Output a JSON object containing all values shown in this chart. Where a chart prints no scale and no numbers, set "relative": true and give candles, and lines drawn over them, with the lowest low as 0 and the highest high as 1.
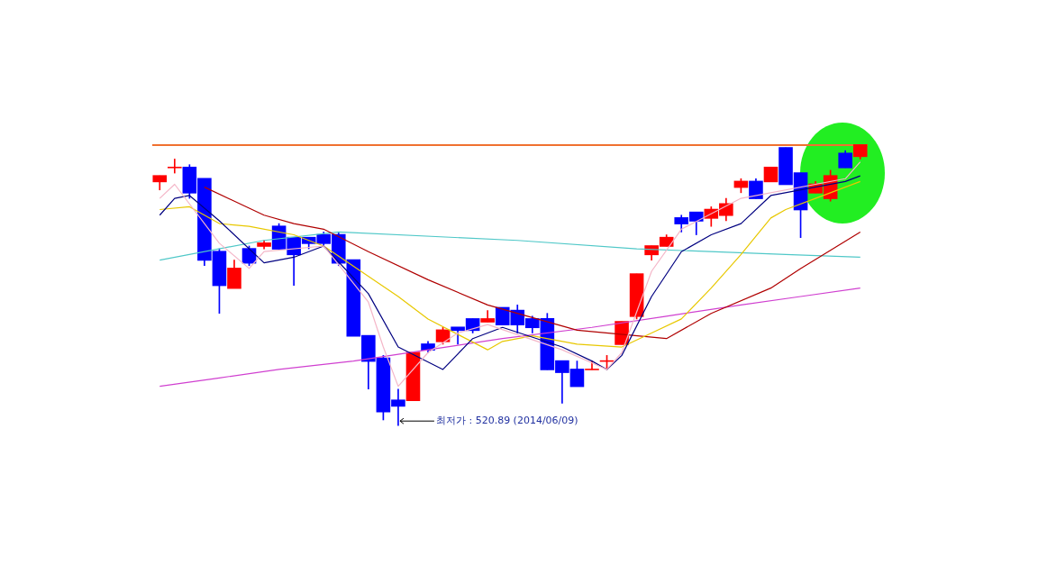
{
  "chart_data": {
    "type": "candlestick",
    "relative": true,
    "categories": [
      null,
      null,
      null,
      null,
      null,
      null,
      null,
      null,
      null,
      null,
      null,
      null,
      null,
      null,
      null,
      null,
      null,
      null,
      null,
      null,
      null,
      null,
      null,
      null,
      null,
      null,
      null,
      null,
      null,
      null,
      null,
      null,
      null,
      null,
      null,
      null,
      null,
      null,
      null,
      null,
      null,
      null,
      null,
      null,
      null,
      null,
      null,
      null
    ],
    "ohlc": [
      [
        0.87,
        0.89,
        0.84,
        0.89
      ],
      [
        0.92,
        0.95,
        0.9,
        0.92
      ],
      [
        0.92,
        0.93,
        0.81,
        0.83
      ],
      [
        0.88,
        0.88,
        0.57,
        0.59
      ],
      [
        0.62,
        0.63,
        0.4,
        0.5
      ],
      [
        0.49,
        0.59,
        0.49,
        0.56
      ],
      [
        0.63,
        0.64,
        0.57,
        0.58
      ],
      [
        0.64,
        0.66,
        0.63,
        0.65
      ],
      [
        0.71,
        0.72,
        0.63,
        0.63
      ],
      [
        0.67,
        0.67,
        0.5,
        0.61
      ],
      [
        0.67,
        0.67,
        0.63,
        0.65
      ],
      [
        0.68,
        0.69,
        0.64,
        0.65
      ],
      [
        0.68,
        0.69,
        0.57,
        0.58
      ],
      [
        0.59,
        0.59,
        0.32,
        0.32
      ],
      [
        0.32,
        0.32,
        0.13,
        0.23
      ],
      [
        0.24,
        0.25,
        0.02,
        0.05
      ],
      [
        0.09,
        0.13,
        0,
        0.07
      ],
      [
        0.09,
        0.26,
        0.09,
        0.26
      ],
      [
        0.29,
        0.3,
        0.26,
        0.27
      ],
      [
        0.3,
        0.35,
        0.29,
        0.34
      ],
      [
        0.35,
        0.35,
        0.29,
        0.34
      ],
      [
        0.38,
        0.38,
        0.33,
        0.34
      ],
      [
        0.37,
        0.41,
        0.37,
        0.38
      ],
      [
        0.42,
        0.42,
        0.36,
        0.36
      ],
      [
        0.41,
        0.43,
        0.33,
        0.36
      ],
      [
        0.38,
        0.39,
        0.33,
        0.35
      ],
      [
        0.38,
        0.4,
        0.2,
        0.2
      ],
      [
        0.23,
        0.23,
        0.08,
        0.19
      ],
      [
        0.2,
        0.23,
        0.14,
        0.14
      ],
      [
        0.2,
        0.23,
        0.2,
        0.2
      ],
      [
        0.23,
        0.25,
        0.2,
        0.23
      ],
      [
        0.29,
        0.37,
        0.29,
        0.37
      ],
      [
        0.39,
        0.54,
        0.38,
        0.54
      ],
      [
        0.61,
        0.64,
        0.59,
        0.64
      ],
      [
        0.64,
        0.68,
        0.64,
        0.67
      ],
      [
        0.74,
        0.75,
        0.69,
        0.72
      ],
      [
        0.76,
        0.76,
        0.68,
        0.73
      ],
      [
        0.74,
        0.78,
        0.71,
        0.77
      ],
      [
        0.75,
        0.81,
        0.73,
        0.79
      ],
      [
        0.85,
        0.88,
        0.83,
        0.87
      ],
      [
        0.87,
        0.88,
        0.81,
        0.81
      ],
      [
        0.87,
        0.92,
        0.87,
        0.92
      ],
      [
        0.99,
        0.99,
        0.86,
        0.86
      ],
      [
        0.9,
        0.9,
        0.67,
        0.77
      ],
      [
        0.83,
        0.87,
        0.83,
        0.86
      ],
      [
        0.81,
        0.91,
        0.8,
        0.89
      ],
      [
        0.97,
        0.98,
        0.92,
        0.92
      ],
      [
        0.96,
        1,
        0.95,
        1
      ]
    ],
    "colors": [
      "#ff0000",
      "#ff0000",
      "#0000ff",
      "#0000ff",
      "#0000ff",
      "#ff0000",
      "#0000ff",
      "#ff0000",
      "#0000ff",
      "#0000ff",
      "#0000ff",
      "#0000ff",
      "#0000ff",
      "#0000ff",
      "#0000ff",
      "#0000ff",
      "#0000ff",
      "#ff0000",
      "#0000ff",
      "#ff0000",
      "#0000ff",
      "#0000ff",
      "#ff0000",
      "#0000ff",
      "#0000ff",
      "#0000ff",
      "#0000ff",
      "#0000ff",
      "#0000ff",
      "#ff0000",
      "#ff0000",
      "#ff0000",
      "#ff0000",
      "#ff0000",
      "#ff0000",
      "#0000ff",
      "#0000ff",
      "#ff0000",
      "#ff0000",
      "#ff0000",
      "#0000ff",
      "#ff0000",
      "#0000ff",
      "#0000ff",
      "#ff0000",
      "#ff0000",
      "#0000ff",
      "#ff0000"
    ],
    "series": [
      {
        "type": "line",
        "color": "#f4b6c8",
        "values": [
          0.81,
          0.86,
          null,
          null,
          0.65,
          null,
          0.56,
          0.62,
          null,
          null,
          null,
          0.64,
          null,
          null,
          0.44,
          0.28,
          0.14,
          null,
          0.26,
          null,
          0.33,
          null,
          0.36,
          null,
          null,
          null,
          null,
          0.27,
          null,
          null,
          0.2,
          0.26,
          null,
          0.55,
          null,
          0.7,
          null,
          null,
          null,
          0.81,
          null,
          null,
          null,
          null,
          null,
          null,
          0.88,
          0.94
        ]
      },
      {
        "type": "line",
        "color": "#000080",
        "values": [
          0.75,
          0.81,
          0.82,
          null,
          0.73,
          null,
          null,
          0.58,
          null,
          0.6,
          null,
          0.64,
          null,
          null,
          0.47,
          null,
          0.28,
          null,
          null,
          0.2,
          null,
          0.31,
          null,
          0.35,
          null,
          null,
          null,
          0.28,
          null,
          0.23,
          0.2,
          0.25,
          null,
          0.46,
          null,
          0.62,
          null,
          0.68,
          null,
          0.72,
          null,
          0.82,
          null,
          null,
          null,
          null,
          0.87,
          0.89
        ]
      },
      {
        "type": "line",
        "color": "#e8c800",
        "values": [
          0.77,
          null,
          0.78,
          null,
          0.72,
          null,
          0.71,
          null,
          null,
          0.68,
          null,
          0.64,
          null,
          null,
          null,
          null,
          0.46,
          null,
          0.38,
          null,
          null,
          null,
          0.27,
          0.3,
          null,
          0.32,
          null,
          null,
          0.29,
          null,
          null,
          0.28,
          null,
          0.33,
          null,
          0.38,
          null,
          0.49,
          null,
          0.61,
          null,
          0.74,
          0.77,
          null,
          0.81,
          null,
          null,
          0.87
        ]
      },
      {
        "type": "line",
        "color": "#b00000",
        "values": [
          null,
          null,
          null,
          0.85,
          null,
          null,
          null,
          0.75,
          null,
          0.72,
          null,
          0.7,
          null,
          null,
          0.62,
          null,
          null,
          null,
          0.52,
          null,
          null,
          null,
          0.43,
          null,
          null,
          null,
          null,
          null,
          0.34,
          null,
          null,
          null,
          null,
          null,
          0.31,
          null,
          null,
          0.4,
          null,
          null,
          null,
          0.49,
          null,
          0.56,
          null,
          null,
          null,
          0.69
        ]
      },
      {
        "type": "line",
        "color": "#50c8c8",
        "values": [
          0.59,
          null,
          null,
          null,
          null,
          null,
          null,
          0.66,
          null,
          null,
          null,
          null,
          0.69,
          null,
          null,
          null,
          null,
          null,
          null,
          null,
          null,
          null,
          null,
          null,
          0.66,
          null,
          null,
          null,
          null,
          null,
          null,
          null,
          0.63,
          null,
          null,
          null,
          null,
          null,
          null,
          null,
          null,
          null,
          0.61,
          null,
          null,
          null,
          null,
          0.6
        ]
      },
      {
        "type": "line",
        "color": "#d040d0",
        "values": [
          0.14,
          null,
          null,
          null,
          0.17,
          null,
          null,
          null,
          0.2,
          null,
          null,
          null,
          null,
          0.23,
          null,
          null,
          null,
          null,
          0.27,
          null,
          null,
          null,
          null,
          0.31,
          null,
          null,
          null,
          null,
          null,
          0.35,
          null,
          null,
          null,
          null,
          0.39,
          null,
          null,
          null,
          null,
          0.43,
          null,
          null,
          null,
          0.46,
          null,
          null,
          null,
          0.49
        ]
      }
    ],
    "ref_lines": [
      {
        "axis": "y",
        "value": 1,
        "color": "#f07030"
      }
    ],
    "annotations": [
      "최저가 : 520.89 (2014/06/09)"
    ]
  }
}
